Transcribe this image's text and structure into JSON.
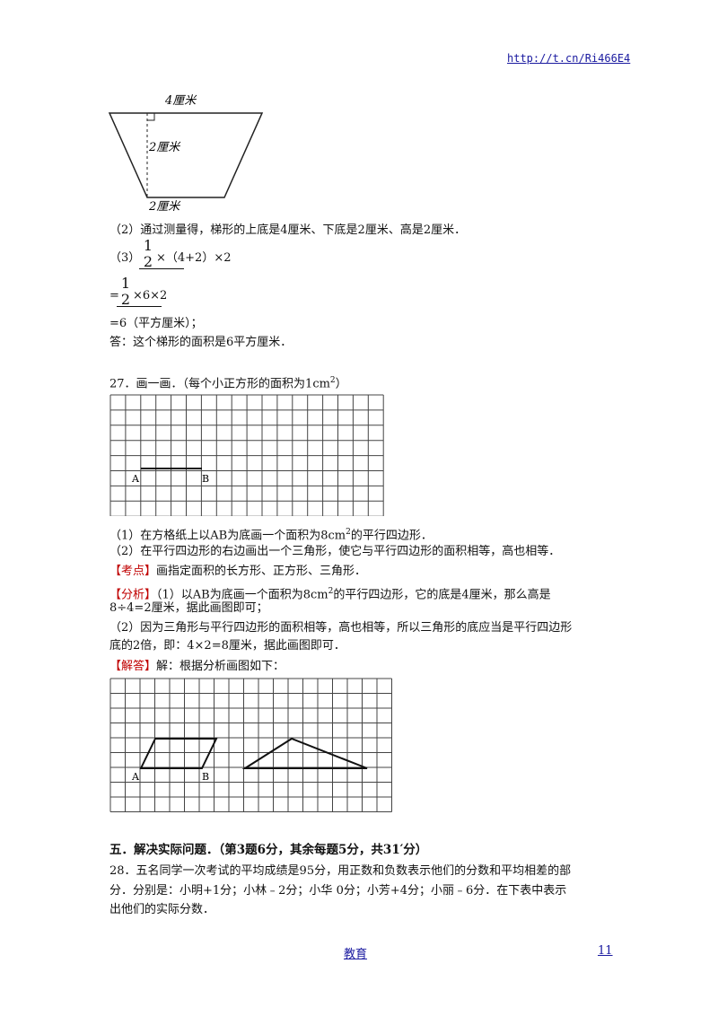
{
  "header": {
    "link": "http://t.cn/Ri466E4"
  },
  "trapezoid": {
    "top_label": "4厘米",
    "height_label": "2厘米",
    "bottom_label": "2厘米"
  },
  "solution26": {
    "line2": "（2）通过测量得，梯形的上底是4厘米、下底是2厘米、高是2厘米．",
    "line3_prefix": "（3）",
    "frac_num": "1",
    "frac_den": "2",
    "line3_rest": "×（4+2）×2",
    "line4_prefix": "=",
    "line4_rest": "×6×2",
    "line5": "=6（平方厘米）；",
    "line6": "答：这个梯形的面积是6平方厘米．"
  },
  "q27": {
    "title": "27．画一画．（每个小正方形的面积为1cm",
    "title_sup": "2",
    "title_end": "）",
    "label_a": "A",
    "label_b": "B",
    "item1_pre": "（1）在方格纸上以AB为底画一个面积为8cm",
    "item1_sup": "2",
    "item1_post": "的平行四边形．",
    "item2": "（2）在平行四边形的右边画出一个三角形，使它与平行四边形的面积相等，高也相等．",
    "kaodian_tag": "【考点】",
    "kaodian_text": "画指定面积的长方形、正方形、三角形．",
    "fenxi_tag": "【分析】",
    "fenxi_text1_pre": "（1）以AB为底画一个面积为8cm",
    "fenxi_text1_sup": "2",
    "fenxi_text1_post": "的平行四边形，它的底是4厘米，那么高是",
    "fenxi_text2": "8÷4=2厘米，据此画图即可；",
    "fenxi_text3": "（2）因为三角形与平行四边形的面积相等，高也相等，所以三角形的底应当是平行四边形",
    "fenxi_text4": "底的2倍，即：4×2=8厘米，据此画图即可．",
    "jieda_tag": "【解答】",
    "jieda_text": "解：根据分析画图如下："
  },
  "section5": {
    "heading": "五．解决实际问题．（第3题6分，其余每题5分，共31′分）"
  },
  "q28": {
    "line1": "28．五名同学一次考试的平均成绩是95分，用正数和负数表示他们的分数和平均相差的部",
    "line2": "分．分别是：小明+1分；小林﹣2分；小华 0分；小芳+4分；小丽﹣6分．在下表中表示",
    "line3": "出他们的实际分数．"
  },
  "footer": {
    "center": "教育",
    "page": "11"
  }
}
